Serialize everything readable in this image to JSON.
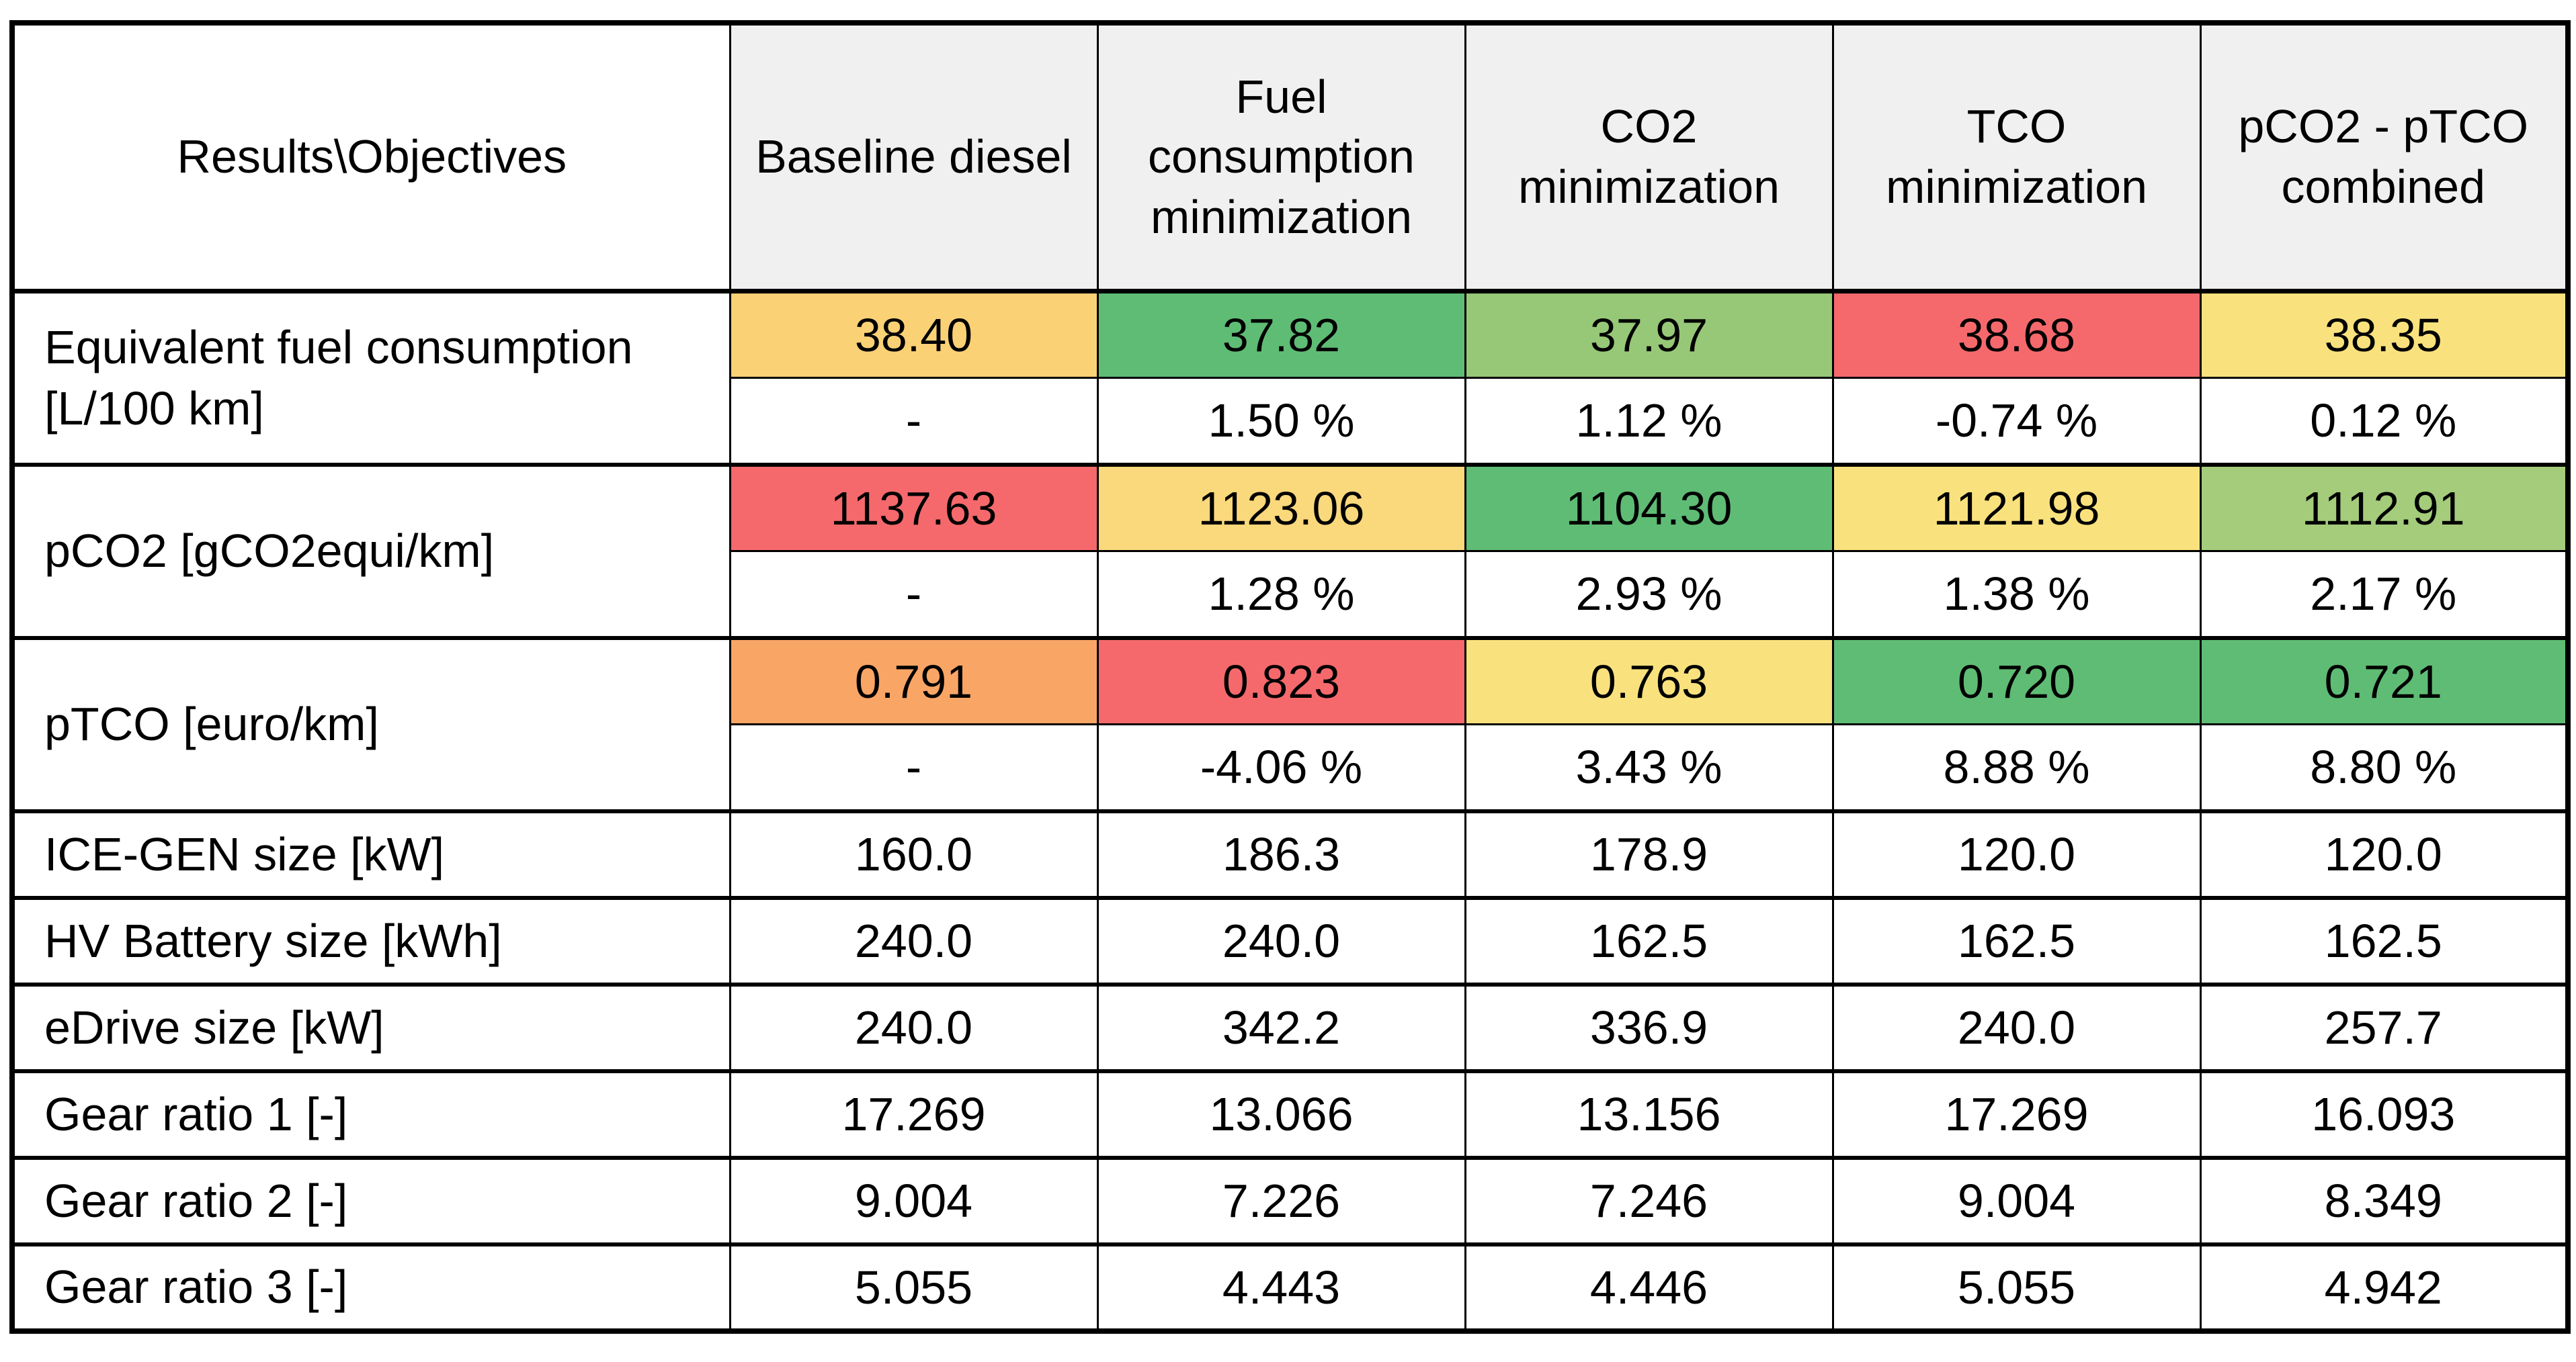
{
  "colors": {
    "header_bg": "#F0F0F0",
    "corner_bg": "#FFFFFF",
    "border": "#000000",
    "red": "#F5696C",
    "orange": "#F9A566",
    "amber": "#FBD176",
    "amber_light": "#FAD87C",
    "yellow": "#F9E27D",
    "green": "#5FBC75",
    "light_green": "#97C877",
    "light_green2": "#A4CC7B"
  },
  "header": {
    "corner": "Results\\Objectives",
    "columns": [
      "Baseline diesel",
      "Fuel consumption minimization",
      "CO2 minimization",
      "TCO minimization",
      "pCO2 - pTCO combined"
    ]
  },
  "rows": {
    "fuel": {
      "label": "Equivalent fuel consumption [L/100 km]",
      "values": [
        "38.40",
        "37.82",
        "37.97",
        "38.68",
        "38.35"
      ],
      "value_bgs": [
        "#FBD176",
        "#5FBC75",
        "#97C877",
        "#F5696C",
        "#F9E27D"
      ],
      "deltas": [
        "-",
        "1.50 %",
        "1.12 %",
        "-0.74 %",
        "0.12 %"
      ]
    },
    "pco2": {
      "label": "pCO2 [gCO2equi/km]",
      "values": [
        "1137.63",
        "1123.06",
        "1104.30",
        "1121.98",
        "1112.91"
      ],
      "value_bgs": [
        "#F5696C",
        "#FAD87C",
        "#5FBC75",
        "#F9E27D",
        "#A4CC7B"
      ],
      "deltas": [
        "-",
        "1.28 %",
        "2.93 %",
        "1.38 %",
        "2.17 %"
      ]
    },
    "ptco": {
      "label": "pTCO [euro/km]",
      "values": [
        "0.791",
        "0.823",
        "0.763",
        "0.720",
        "0.721"
      ],
      "value_bgs": [
        "#F9A566",
        "#F5696C",
        "#F9E27D",
        "#5FBC75",
        "#5FBC75"
      ],
      "deltas": [
        "-",
        "-4.06 %",
        "3.43 %",
        "8.88 %",
        "8.80 %"
      ]
    },
    "ice_gen": {
      "label": "ICE-GEN size [kW]",
      "values": [
        "160.0",
        "186.3",
        "178.9",
        "120.0",
        "120.0"
      ]
    },
    "hv_battery": {
      "label": "HV Battery size [kWh]",
      "values": [
        "240.0",
        "240.0",
        "162.5",
        "162.5",
        "162.5"
      ]
    },
    "edrive": {
      "label": "eDrive size [kW]",
      "values": [
        "240.0",
        "342.2",
        "336.9",
        "240.0",
        "257.7"
      ]
    },
    "gear1": {
      "label": "Gear ratio 1 [-]",
      "values": [
        "17.269",
        "13.066",
        "13.156",
        "17.269",
        "16.093"
      ]
    },
    "gear2": {
      "label": "Gear ratio 2 [-]",
      "values": [
        "9.004",
        "7.226",
        "7.246",
        "9.004",
        "8.349"
      ]
    },
    "gear3": {
      "label": "Gear ratio 3 [-]",
      "values": [
        "5.055",
        "4.443",
        "4.446",
        "5.055",
        "4.942"
      ]
    }
  }
}
